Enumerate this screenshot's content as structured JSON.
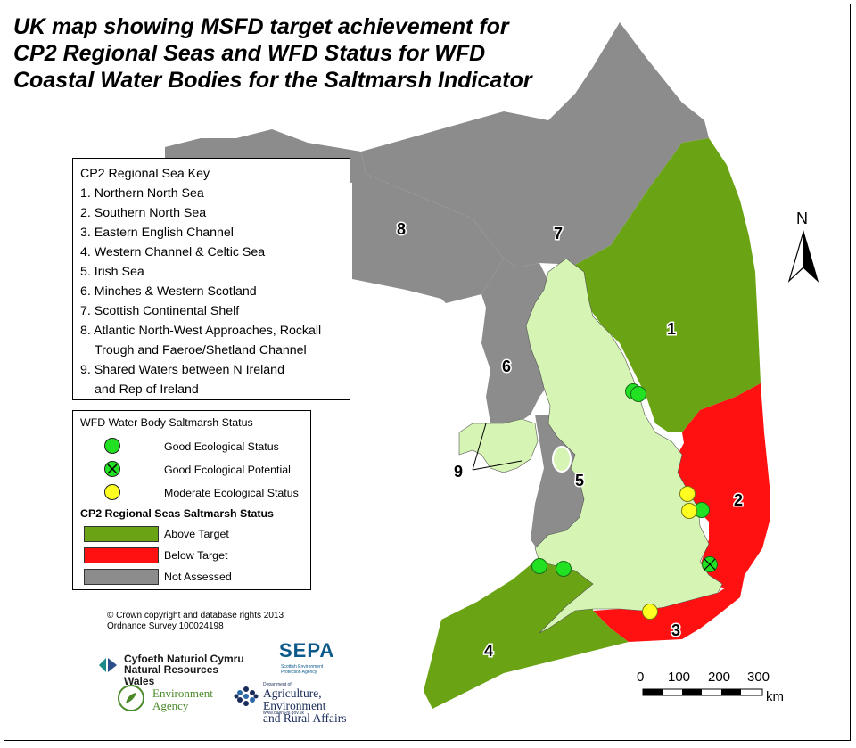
{
  "title": {
    "line1": "UK map showing MSFD target achievement for",
    "line2": "CP2 Regional Seas and WFD Status for WFD",
    "line3": "Coastal Water Bodies for the Saltmarsh Indicator"
  },
  "sea_key": {
    "heading": "CP2 Regional Sea Key",
    "items": [
      {
        "text": "1. Northern North Sea"
      },
      {
        "text": "2. Southern North Sea"
      },
      {
        "text": "3. Eastern English Channel"
      },
      {
        "text": "4. Western Channel & Celtic Sea"
      },
      {
        "text": "5. Irish Sea"
      },
      {
        "text": "6. Minches & Western Scotland"
      },
      {
        "text": "7. Scottish Continental Shelf"
      },
      {
        "text": "8. Atlantic North-West Approaches, Rockall"
      },
      {
        "text": "Trough and Faeroe/Shetland Channel"
      },
      {
        "text": "9. Shared Waters between N Ireland"
      },
      {
        "text": "and Rep of Ireland"
      }
    ]
  },
  "status_legend": {
    "wfd_heading": "WFD Water Body Saltmarsh Status",
    "wfd_items": [
      {
        "label": "Good Ecological Status",
        "color": "#22e022"
      },
      {
        "label": "Good Ecological Potential",
        "color": "#22e022",
        "crossed": true
      },
      {
        "label": "Moderate Ecological Status",
        "color": "#ffff22"
      }
    ],
    "seas_heading": "CP2 Regional Seas Saltmarsh Status",
    "seas_items": [
      {
        "label": "Above Target",
        "color": "#6aa313"
      },
      {
        "label": "Below Target",
        "color": "#ff1111"
      },
      {
        "label": "Not Assessed",
        "color": "#8c8c8c"
      }
    ]
  },
  "sea_labels": {
    "n1": "1",
    "n2": "2",
    "n3": "3",
    "n4": "4",
    "n5": "5",
    "n6": "6",
    "n7": "7",
    "n8": "8",
    "n9": "9"
  },
  "colors": {
    "land": "#d6f5b4",
    "above_target": "#6aa313",
    "below_target": "#ff1111",
    "not_assessed": "#8c8c8c",
    "good": "#22e022",
    "moderate": "#ffff22"
  },
  "credit": {
    "line1": "© Crown copyright and database rights 2013",
    "line2": "Ordnance Survey 100024198"
  },
  "north": "N",
  "scale": {
    "ticks": [
      "0",
      "100",
      "200",
      "300"
    ],
    "unit": "km"
  },
  "logos": {
    "nrw_line1": "Cyfoeth Naturiol Cymru",
    "nrw_line2": "Natural Resources Wales",
    "sepa_name": "SEPA",
    "sepa_sub": "Scottish Environment Protection Agency",
    "ea_line1": "Environment",
    "ea_line2": "Agency",
    "daera_pre": "Department of",
    "daera_line1": "Agriculture, Environment",
    "daera_line2": "and Rural Affairs",
    "daera_url": "www.daera-ni.gov.uk"
  }
}
